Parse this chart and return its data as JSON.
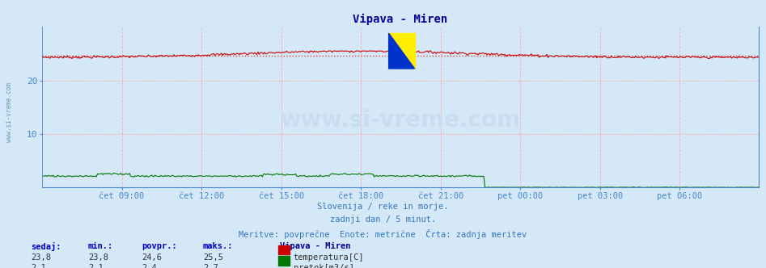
{
  "title": "Vipava - Miren",
  "title_color": "#000099",
  "bg_color": "#d4e8f8",
  "plot_bg_color": "#d4e8f8",
  "grid_color": "#ffaaaa",
  "x_tick_labels": [
    "čet 09:00",
    "čet 12:00",
    "čet 15:00",
    "čet 18:00",
    "čet 21:00",
    "pet 00:00",
    "pet 03:00",
    "pet 06:00"
  ],
  "x_tick_positions": [
    72,
    144,
    216,
    288,
    360,
    432,
    504,
    576
  ],
  "n_points": 648,
  "y_ticks": [
    10,
    20
  ],
  "ylim_min": 0,
  "ylim_max": 30,
  "temp_color": "#cc0000",
  "flow_color": "#007700",
  "avg_line_color": "#dd4444",
  "temp_avg": 24.6,
  "temp_min": 23.8,
  "temp_max": 25.5,
  "flow_avg": 2.4,
  "flow_min": 2.1,
  "flow_max": 2.7,
  "temp_current": 23.8,
  "flow_current": 2.1,
  "subtitle1": "Slovenija / reke in morje.",
  "subtitle2": "zadnji dan / 5 minut.",
  "subtitle3": "Meritve: povprečne  Enote: metrične  Črta: zadnja meritev",
  "text_color": "#3377bb",
  "watermark": "www.si-vreme.com",
  "watermark_color": "#c8ddf0",
  "left_label": "www.si-vreme.com",
  "table_headers": [
    "sedaj:",
    "min.:",
    "povpr.:",
    "maks.:"
  ],
  "table_header_color": "#0000cc",
  "station_label": "Vipava - Miren",
  "legend_temp": "temperatura[C]",
  "legend_flow": "pretok[m3/s]",
  "spine_color": "#4488cc",
  "tick_label_color": "#4488cc"
}
